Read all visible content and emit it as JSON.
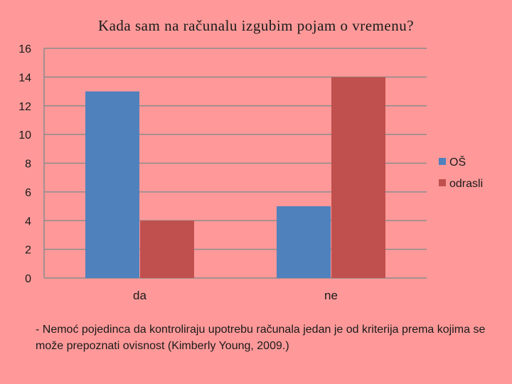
{
  "chart_data": {
    "type": "bar",
    "title": "Kada sam na računalu izgubim pojam o vremenu?",
    "categories": [
      "da",
      "ne"
    ],
    "series": [
      {
        "name": "OŠ",
        "values": [
          13,
          5
        ],
        "color": "#4f81bd"
      },
      {
        "name": "odrasli",
        "values": [
          4,
          14
        ],
        "color": "#c0504d"
      }
    ],
    "ylim": [
      0,
      16
    ],
    "yticks": [
      0,
      2,
      4,
      6,
      8,
      10,
      12,
      14,
      16
    ],
    "grid": true,
    "legend": "right"
  },
  "footnote": "- Nemoć pojedinca da kontroliraju upotrebu računala jedan je od kriterija prema kojima se može prepoznati ovisnost (Kimberly Young, 2009.)"
}
